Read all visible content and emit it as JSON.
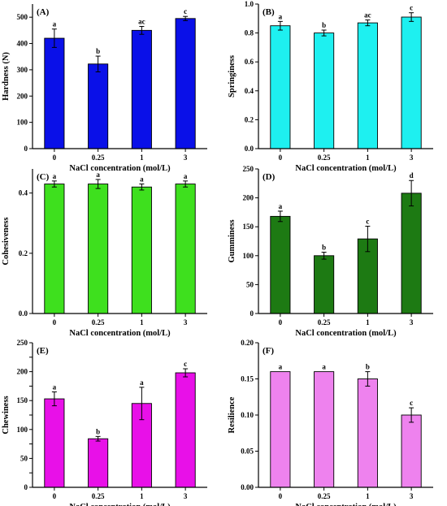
{
  "chart_data": [
    {
      "type": "bar",
      "panel": "(A)",
      "categories": [
        "0",
        "0.25",
        "1",
        "3"
      ],
      "values": [
        420,
        322,
        450,
        495
      ],
      "errors": [
        35,
        30,
        15,
        8
      ],
      "letters": [
        "a",
        "b",
        "ac",
        "c"
      ],
      "xlabel": "NaCl concentration (mol/L)",
      "ylabel": "Hardness (N)",
      "ylim": [
        0,
        550
      ],
      "yticks": [
        0,
        100,
        200,
        300,
        400,
        500
      ],
      "ytick_labels": [
        "0",
        "100",
        "200",
        "300",
        "400",
        "500"
      ],
      "color": "#0a10e8"
    },
    {
      "type": "bar",
      "panel": "(B)",
      "categories": [
        "0",
        "0.25",
        "1",
        "3"
      ],
      "values": [
        0.85,
        0.8,
        0.87,
        0.91
      ],
      "errors": [
        0.03,
        0.02,
        0.02,
        0.03
      ],
      "letters": [
        "a",
        "b",
        "ac",
        "c"
      ],
      "xlabel": "NaCl concentration (mol/L)",
      "ylabel": "Springiness",
      "ylim": [
        0,
        1.0
      ],
      "yticks": [
        0,
        0.2,
        0.4,
        0.6,
        0.8,
        1.0
      ],
      "ytick_labels": [
        "0.0",
        "0.2",
        "0.4",
        "0.6",
        "0.8",
        "1.0"
      ],
      "color": "#1ef0f0"
    },
    {
      "type": "bar",
      "panel": "(C)",
      "categories": [
        "0",
        "0.25",
        "1",
        "3"
      ],
      "values": [
        0.43,
        0.43,
        0.42,
        0.43
      ],
      "errors": [
        0.01,
        0.015,
        0.01,
        0.01
      ],
      "letters": [
        "a",
        "a",
        "a",
        "a"
      ],
      "xlabel": "NaCl concentration (mol/L)",
      "ylabel": "Cohesiveness",
      "ylim": [
        0,
        0.48
      ],
      "yticks": [
        0,
        0.2,
        0.4
      ],
      "ytick_labels": [
        "0.0",
        "0.2",
        "0.4"
      ],
      "color": "#3ee01e"
    },
    {
      "type": "bar",
      "panel": "(D)",
      "categories": [
        "0",
        "0.25",
        "1",
        "3"
      ],
      "values": [
        168,
        100,
        129,
        208
      ],
      "errors": [
        9,
        6,
        22,
        22
      ],
      "letters": [
        "a",
        "b",
        "c",
        "d"
      ],
      "xlabel": "NaCl concentration (mol/L)",
      "ylabel": "Gumminess",
      "ylim": [
        0,
        250
      ],
      "yticks": [
        0,
        50,
        100,
        150,
        200,
        250
      ],
      "ytick_labels": [
        "0",
        "50",
        "100",
        "150",
        "200",
        "250"
      ],
      "color": "#1d7a13"
    },
    {
      "type": "bar",
      "panel": "(E)",
      "categories": [
        "0",
        "0.25",
        "1",
        "3"
      ],
      "values": [
        153,
        84,
        145,
        198
      ],
      "errors": [
        12,
        4,
        28,
        7
      ],
      "letters": [
        "a",
        "b",
        "a",
        "c"
      ],
      "xlabel": "NaCl concentration (mol/L)",
      "ylabel": "Chewiness",
      "ylim": [
        0,
        250
      ],
      "yticks": [
        0,
        25,
        50,
        75,
        100,
        125,
        150,
        175,
        200,
        225,
        250
      ],
      "ytick_labels": [
        "0",
        "",
        "50",
        "",
        "100",
        "",
        "150",
        "",
        "200",
        "",
        "250"
      ],
      "color": "#e810e8"
    },
    {
      "type": "bar",
      "panel": "(F)",
      "categories": [
        "0",
        "0.25",
        "1",
        "3"
      ],
      "values": [
        0.16,
        0.16,
        0.15,
        0.1
      ],
      "errors": [
        0,
        0,
        0.01,
        0.01
      ],
      "letters": [
        "a",
        "a",
        "b",
        "c"
      ],
      "xlabel": "NaCl concentration (mol/L)",
      "ylabel": "Resilience",
      "ylim": [
        0,
        0.2
      ],
      "yticks": [
        0,
        0.05,
        0.1,
        0.15,
        0.2
      ],
      "ytick_labels": [
        "0.00",
        "0.05",
        "0.10",
        "0.15",
        "0.20"
      ],
      "color": "#ee82ee"
    }
  ]
}
